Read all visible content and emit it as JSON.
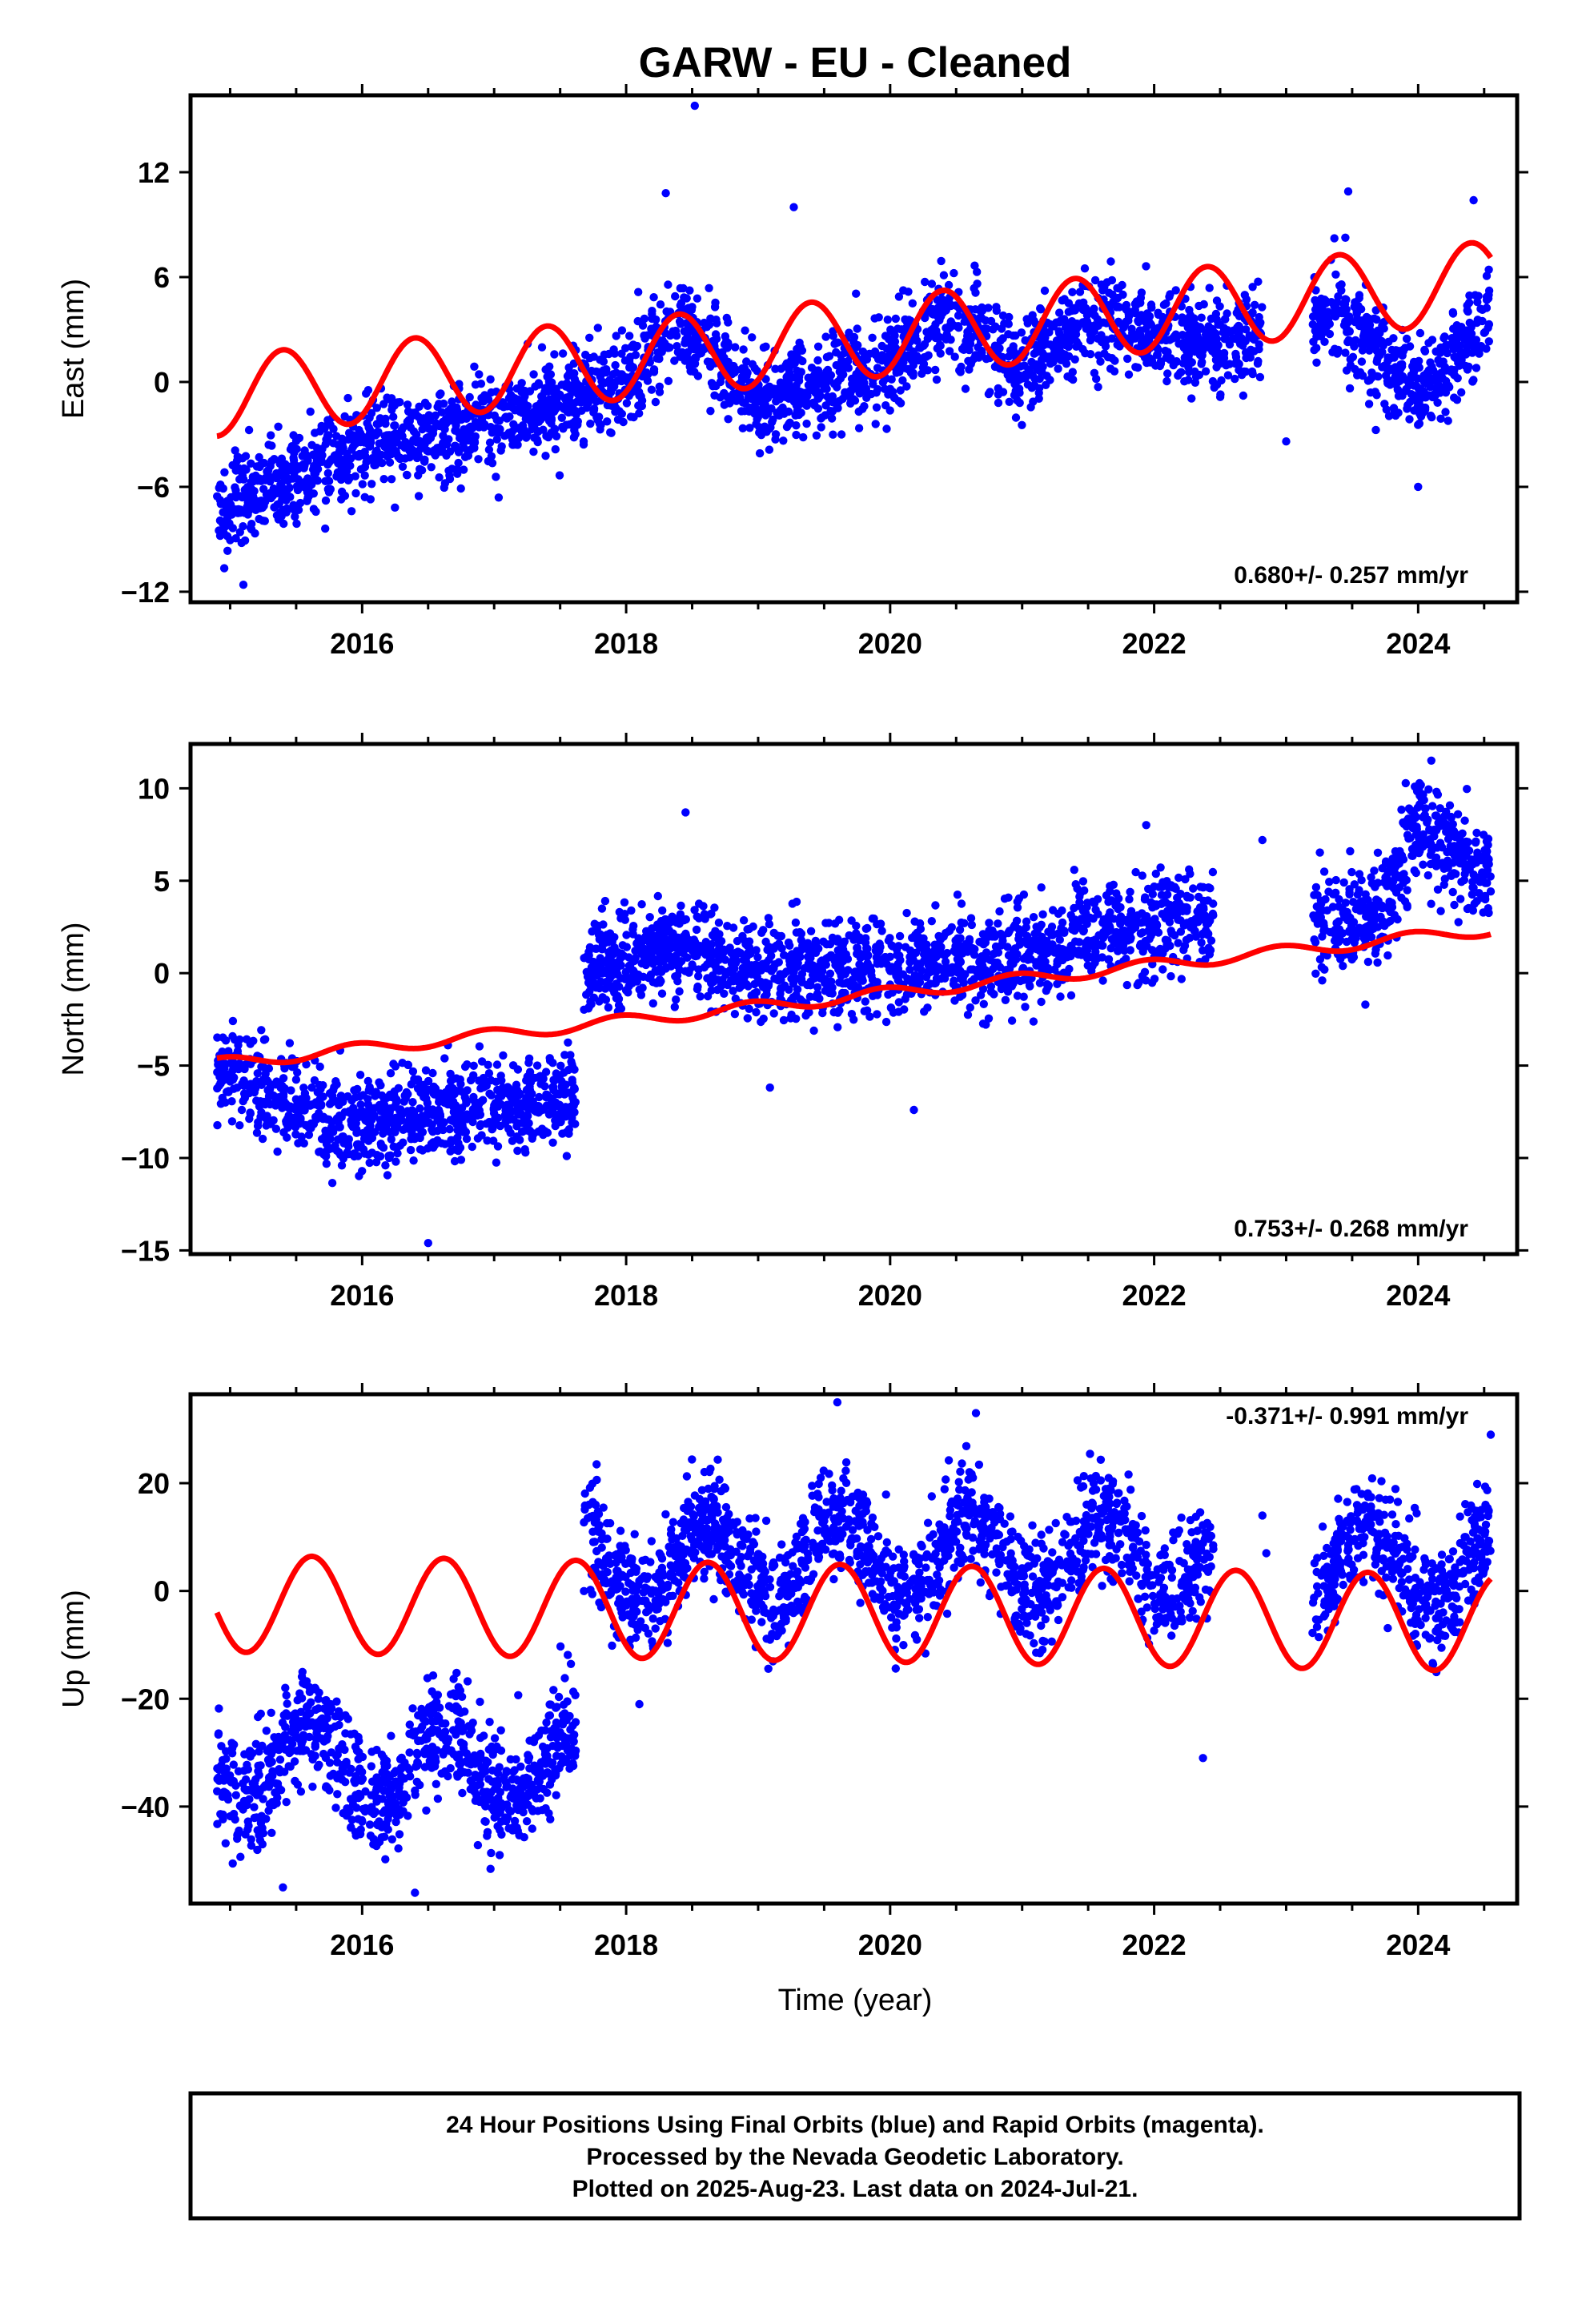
{
  "title": "GARW  - EU - Cleaned",
  "xlabel": "Time (year)",
  "footer": [
    "24 Hour Positions Using Final Orbits (blue) and Rapid Orbits (magenta).",
    "Processed by the Nevada Geodetic Laboratory.",
    "Plotted on 2025-Aug-23. Last data on 2024-Jul-21."
  ],
  "colors": {
    "data": "#0000ff",
    "model": "#ff0000",
    "frame": "#000000"
  },
  "chart_data": [
    {
      "type": "scatter",
      "panel": "east",
      "ylabel": "East (mm)",
      "xlim": [
        2014.7,
        2024.75
      ],
      "ylim": [
        -12.6,
        16.4
      ],
      "xticks": [
        2016,
        2018,
        2020,
        2022,
        2024
      ],
      "yticks": [
        -12,
        -6,
        0,
        6,
        12
      ],
      "rate_label": "0.680+/- 0.257 mm/yr",
      "data_span": [
        2014.9,
        2024.55
      ],
      "series": [
        {
          "role": "observations",
          "color": "#0000ff",
          "segments": [
            {
              "t0": 2014.9,
              "t1": 2022.82,
              "offset": 0.0,
              "rate": 0.68,
              "amp": 2.4,
              "phase_peak": 0.4,
              "noise": 1.3
            },
            {
              "t0": 2023.2,
              "t1": 2024.55,
              "offset": 0.0,
              "rate": 0.68,
              "amp": 2.4,
              "phase_peak": 0.4,
              "noise": 1.3
            }
          ],
          "trend_points": [
            [
              2014.9,
              -7.5
            ],
            [
              2016.0,
              -3.5
            ],
            [
              2017.0,
              -2.5
            ],
            [
              2018.0,
              0.0
            ],
            [
              2018.4,
              3.5
            ],
            [
              2019.0,
              -1.0
            ],
            [
              2020.0,
              1.0
            ],
            [
              2020.4,
              4.0
            ],
            [
              2021.0,
              1.0
            ],
            [
              2021.5,
              3.5
            ],
            [
              2022.5,
              2.0
            ],
            [
              2023.4,
              4.0
            ],
            [
              2024.0,
              -1.0
            ],
            [
              2024.55,
              4.0
            ]
          ],
          "outliers": [
            [
              2018.52,
              15.8
            ],
            [
              2018.3,
              10.8
            ],
            [
              2019.27,
              10.0
            ],
            [
              2023.47,
              10.9
            ],
            [
              2024.42,
              10.4
            ],
            [
              2023.0,
              -3.4
            ],
            [
              2024.0,
              -6.0
            ],
            [
              2015.1,
              -11.6
            ]
          ]
        },
        {
          "role": "model",
          "color": "#ff0000",
          "x_range": [
            2014.9,
            2024.55
          ],
          "model": {
            "offset_at_2014_9": -3.1,
            "rate": 0.68,
            "amp": 2.3,
            "phase_peak": 0.4
          }
        }
      ]
    },
    {
      "type": "scatter",
      "panel": "north",
      "ylabel": "North (mm)",
      "xlim": [
        2014.7,
        2024.75
      ],
      "ylim": [
        -15.2,
        12.4
      ],
      "xticks": [
        2016,
        2018,
        2020,
        2022,
        2024
      ],
      "yticks": [
        -15,
        -10,
        -5,
        0,
        5,
        10
      ],
      "rate_label": "0.753+/- 0.268 mm/yr",
      "data_span": [
        2014.9,
        2024.55
      ],
      "series": [
        {
          "role": "observations",
          "color": "#0000ff",
          "segments": [
            {
              "t0": 2014.9,
              "t1": 2017.62,
              "offset": 0.0,
              "rate": 0.0,
              "amp": 0.0,
              "phase_peak": 0.0,
              "noise": 1.2
            },
            {
              "t0": 2017.68,
              "t1": 2022.45,
              "offset": 0.0,
              "rate": 0.0,
              "amp": 0.0,
              "phase_peak": 0.0,
              "noise": 1.3
            },
            {
              "t0": 2023.2,
              "t1": 2024.55,
              "offset": 0.0,
              "rate": 0.0,
              "amp": 0.0,
              "phase_peak": 0.0,
              "noise": 1.4
            }
          ],
          "trend_points": [
            [
              2014.9,
              -5.5
            ],
            [
              2015.5,
              -7.0
            ],
            [
              2016.0,
              -8.5
            ],
            [
              2016.5,
              -7.5
            ],
            [
              2017.0,
              -7.0
            ],
            [
              2017.6,
              -6.5
            ],
            [
              2017.7,
              0.0
            ],
            [
              2018.4,
              1.5
            ],
            [
              2019.0,
              0.0
            ],
            [
              2020.0,
              0.5
            ],
            [
              2021.0,
              1.0
            ],
            [
              2021.5,
              2.0
            ],
            [
              2022.0,
              2.5
            ],
            [
              2022.45,
              3.0
            ],
            [
              2023.2,
              3.0
            ],
            [
              2023.7,
              3.0
            ],
            [
              2024.0,
              8.0
            ],
            [
              2024.55,
              5.0
            ]
          ],
          "outliers": [
            [
              2018.45,
              8.7
            ],
            [
              2016.5,
              -14.6
            ],
            [
              2020.18,
              -7.4
            ],
            [
              2022.82,
              7.2
            ],
            [
              2023.6,
              -1.7
            ],
            [
              2024.1,
              11.5
            ]
          ]
        },
        {
          "role": "model",
          "color": "#ff0000",
          "x_range": [
            2014.9,
            2024.55
          ],
          "model": {
            "offset_at_2014_9": -4.6,
            "rate": 0.753,
            "amp": 0.32,
            "phase_peak": 0.95
          }
        }
      ]
    },
    {
      "type": "scatter",
      "panel": "up",
      "ylabel": "Up (mm)",
      "xlim": [
        2014.7,
        2024.75
      ],
      "ylim": [
        -58.0,
        36.5
      ],
      "xticks": [
        2016,
        2018,
        2020,
        2022,
        2024
      ],
      "yticks": [
        -40,
        -20,
        0,
        20
      ],
      "rate_label": "-0.371+/- 0.991 mm/yr",
      "data_span": [
        2014.9,
        2024.55
      ],
      "series": [
        {
          "role": "observations",
          "color": "#0000ff",
          "segments": [
            {
              "t0": 2014.9,
              "t1": 2017.62,
              "offset": -32.0,
              "rate": 0.0,
              "amp": 7.0,
              "phase_peak": 0.62,
              "noise": 5.0
            },
            {
              "t0": 2017.68,
              "t1": 2022.45,
              "offset": 6.0,
              "rate": 0.0,
              "amp": 7.0,
              "phase_peak": 0.62,
              "noise": 5.0
            },
            {
              "t0": 2023.2,
              "t1": 2024.55,
              "offset": 4.0,
              "rate": 0.0,
              "amp": 7.0,
              "phase_peak": 0.62,
              "noise": 5.0
            }
          ],
          "trend_points": [],
          "outliers": [
            [
              2019.6,
              35.0
            ],
            [
              2020.65,
              33.0
            ],
            [
              2022.37,
              -31.0
            ],
            [
              2022.85,
              7.0
            ],
            [
              2022.82,
              14.0
            ],
            [
              2024.55,
              29.0
            ],
            [
              2015.4,
              -55.0
            ],
            [
              2016.4,
              -56.0
            ],
            [
              2018.1,
              -21.0
            ]
          ]
        },
        {
          "role": "model",
          "color": "#ff0000",
          "x_range": [
            2014.9,
            2024.55
          ],
          "model": {
            "offset_at_2014_9": -4.0,
            "rate": -0.371,
            "amp": 9.0,
            "phase_peak": 0.62
          }
        }
      ]
    }
  ]
}
